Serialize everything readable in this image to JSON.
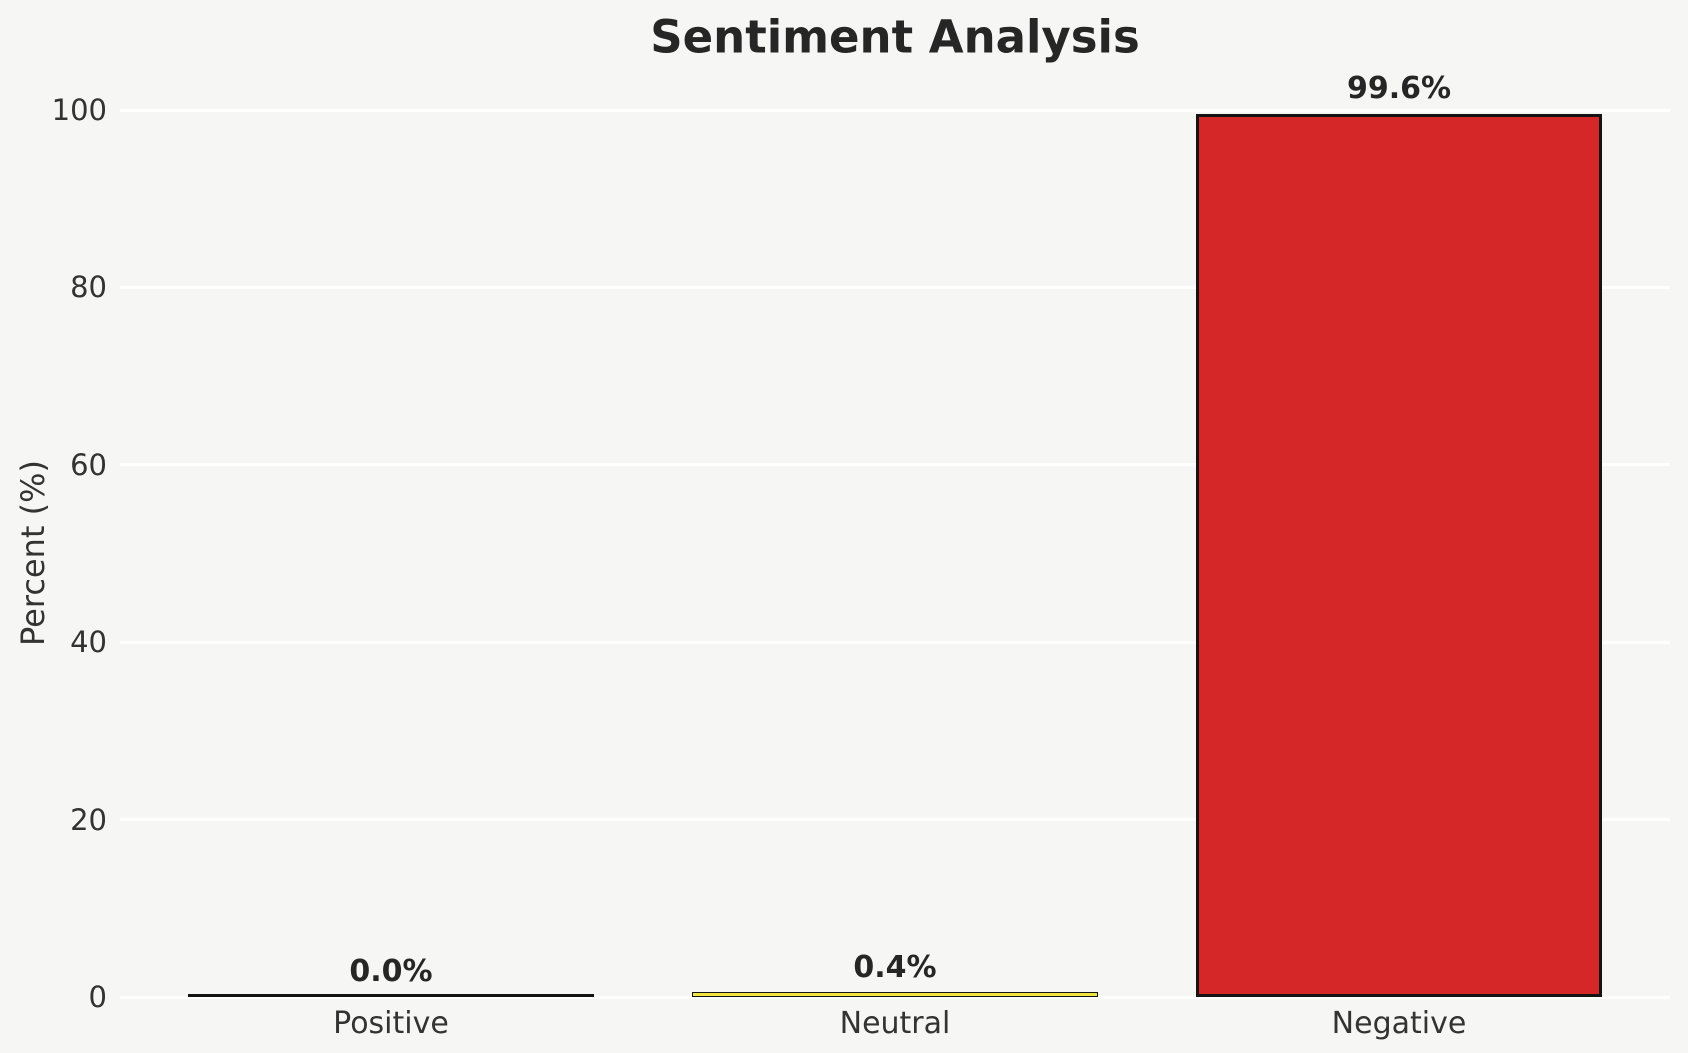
{
  "chart_data": {
    "type": "bar",
    "title": "Sentiment Analysis",
    "xlabel": "",
    "ylabel": "Percent (%)",
    "categories": [
      "Positive",
      "Neutral",
      "Negative"
    ],
    "values": [
      0.0,
      0.4,
      99.6
    ],
    "value_labels": [
      "0.0%",
      "0.4%",
      "99.6%"
    ],
    "ylim": [
      0,
      100
    ],
    "yticks": [
      0,
      20,
      40,
      60,
      80,
      100
    ],
    "legend": "none",
    "grid": "horizontal white gridlines on light gray background",
    "colors": {
      "background": "#f6f6f5",
      "gridline": "#ffffff",
      "bar_edge": "#141414",
      "bar_fills": [
        null,
        "#f0e442",
        "#d62728"
      ],
      "title_text": "#262626",
      "tick_text": "#333333"
    }
  }
}
